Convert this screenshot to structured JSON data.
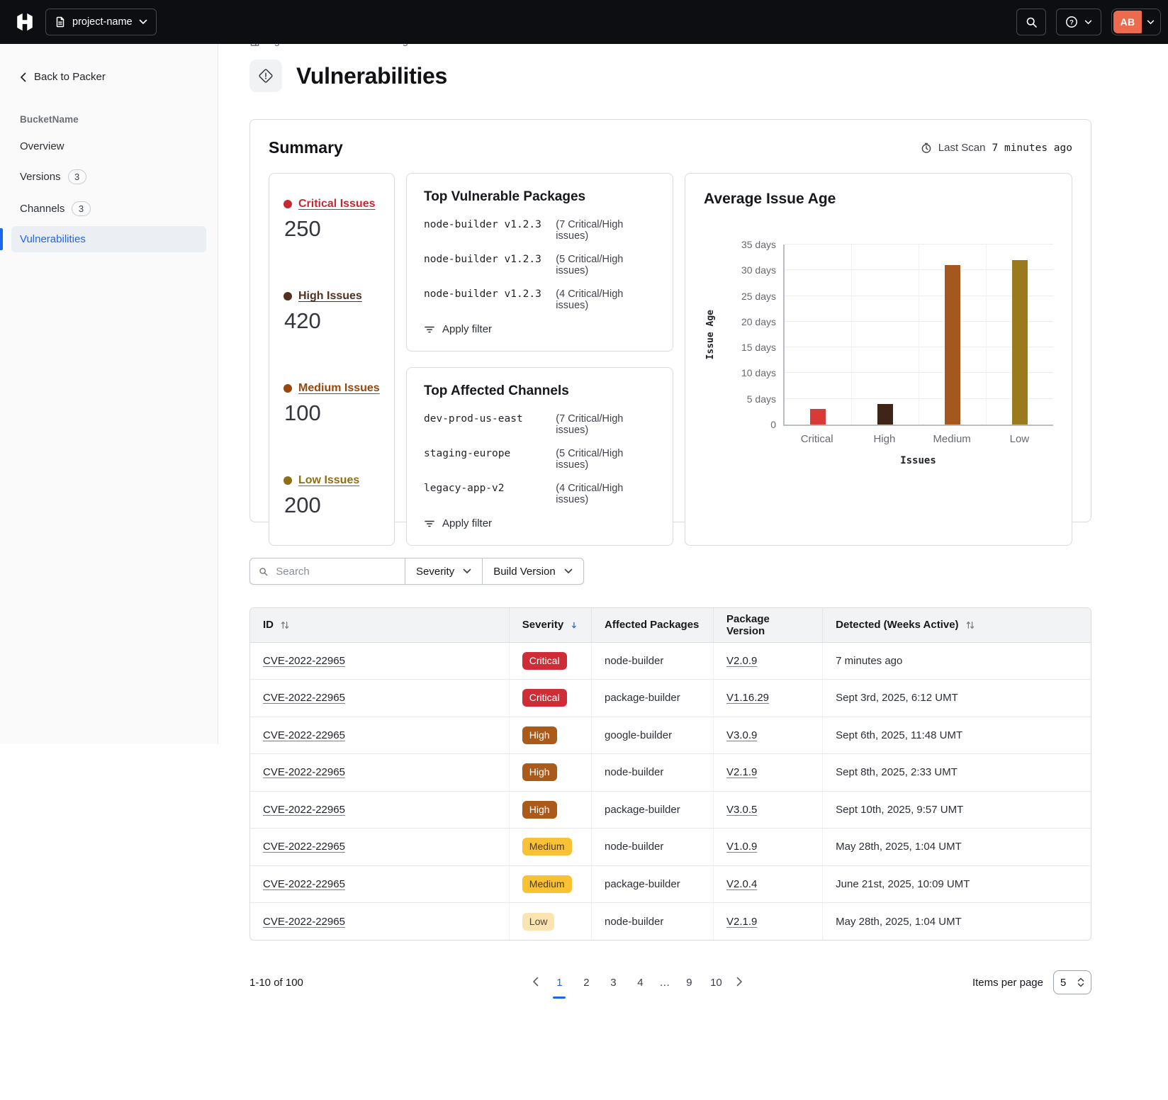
{
  "navbar": {
    "project_button_label": "project-name",
    "avatar_initials": "AB",
    "avatar_color": "#EC6A4D"
  },
  "sidebar": {
    "back_label": "Back to Packer",
    "section_label": "BucketName",
    "items": [
      {
        "label": "Overview"
      },
      {
        "label": "Versions",
        "badge": "3"
      },
      {
        "label": "Channels",
        "badge": "3"
      },
      {
        "label": "Vulnerabilities",
        "active": true
      }
    ]
  },
  "breadcrumb": {
    "items": [
      "orgname",
      "•••",
      "PackerImage",
      "buckets",
      "BucketName"
    ]
  },
  "page": {
    "title": "Vulnerabilities"
  },
  "summary": {
    "title": "Summary",
    "last_scan_label": "Last Scan",
    "last_scan_value": "7 minutes ago",
    "stats": [
      {
        "label": "Critical Issues",
        "value": "250",
        "color": "#C52A33"
      },
      {
        "label": "High Issues",
        "value": "420",
        "color": "#54301E"
      },
      {
        "label": "Medium Issues",
        "value": "100",
        "color": "#96470E"
      },
      {
        "label": "Low Issues",
        "value": "200",
        "color": "#8F6F14"
      }
    ],
    "top_packages": {
      "title": "Top Vulnerable Packages",
      "rows": [
        {
          "name": "node-builder v1.2.3",
          "note": "(7 Critical/High issues)"
        },
        {
          "name": "node-builder v1.2.3",
          "note": "(5 Critical/High issues)"
        },
        {
          "name": "node-builder v1.2.3",
          "note": "(4 Critical/High issues)"
        }
      ],
      "apply_label": "Apply filter"
    },
    "top_channels": {
      "title": "Top Affected Channels",
      "rows": [
        {
          "name": "dev-prod-us-east",
          "note": "(7 Critical/High issues)"
        },
        {
          "name": "staging-europe",
          "note": "(5 Critical/High issues)"
        },
        {
          "name": "legacy-app-v2",
          "note": "(4 Critical/High issues)"
        }
      ],
      "apply_label": "Apply filter"
    }
  },
  "chart_data": {
    "type": "bar",
    "title": "Average Issue Age",
    "categories": [
      "Critical",
      "High",
      "Medium",
      "Low"
    ],
    "values": [
      3,
      4,
      31,
      32
    ],
    "unit": "days",
    "xlabel": "Issues",
    "ylabel": "Issue Age",
    "ylim": [
      0,
      35
    ],
    "ytick_step": 5,
    "grid": true,
    "legend": false,
    "bar_colors": [
      "#D63B38",
      "#3F2517",
      "#A4581F",
      "#9B7A1E"
    ]
  },
  "filters": {
    "search_placeholder": "Search",
    "severity_label": "Severity",
    "build_version_label": "Build Version"
  },
  "severity_colors": {
    "critical": {
      "bg": "#CE2D36",
      "fg": "#FFFFFF"
    },
    "high": {
      "bg": "#AB5A19",
      "fg": "#FFFFFF"
    },
    "medium": {
      "bg": "#F9C235",
      "fg": "#4F3A10"
    },
    "low": {
      "bg": "#FAE4B2",
      "fg": "#514635"
    }
  },
  "table": {
    "columns": [
      {
        "label": "ID"
      },
      {
        "label": "Severity"
      },
      {
        "label": "Affected Packages"
      },
      {
        "label": "Package Version"
      },
      {
        "label": "Detected (Weeks Active)"
      }
    ],
    "rows": [
      {
        "id": "CVE-2022-22965",
        "severity": "Critical",
        "package": "node-builder",
        "version": "V2.0.9",
        "detected": "7 minutes ago"
      },
      {
        "id": "CVE-2022-22965",
        "severity": "Critical",
        "package": "package-builder",
        "version": "V1.16.29",
        "detected": "Sept 3rd, 2025, 6:12 UMT"
      },
      {
        "id": "CVE-2022-22965",
        "severity": "High",
        "package": "google-builder",
        "version": "V3.0.9",
        "detected": "Sept 6th, 2025, 11:48 UMT"
      },
      {
        "id": "CVE-2022-22965",
        "severity": "High",
        "package": "node-builder",
        "version": "V2.1.9",
        "detected": "Sept 8th, 2025, 2:33 UMT"
      },
      {
        "id": "CVE-2022-22965",
        "severity": "High",
        "package": "package-builder",
        "version": "V3.0.5",
        "detected": "Sept 10th, 2025, 9:57 UMT"
      },
      {
        "id": "CVE-2022-22965",
        "severity": "Medium",
        "package": "node-builder",
        "version": "V1.0.9",
        "detected": "May 28th, 2025, 1:04 UMT"
      },
      {
        "id": "CVE-2022-22965",
        "severity": "Medium",
        "package": "package-builder",
        "version": "V2.0.4",
        "detected": "June 21st, 2025, 10:09 UMT"
      },
      {
        "id": "CVE-2022-22965",
        "severity": "Low",
        "package": "node-builder",
        "version": "V2.1.9",
        "detected": "May 28th, 2025, 1:04 UMT"
      }
    ]
  },
  "pagination": {
    "range_label": "1-10 of 100",
    "pages": [
      "1",
      "2",
      "3",
      "4",
      "…",
      "9",
      "10"
    ],
    "active_page": "1",
    "items_per_page_label": "Items per page",
    "items_per_page_value": "5"
  }
}
